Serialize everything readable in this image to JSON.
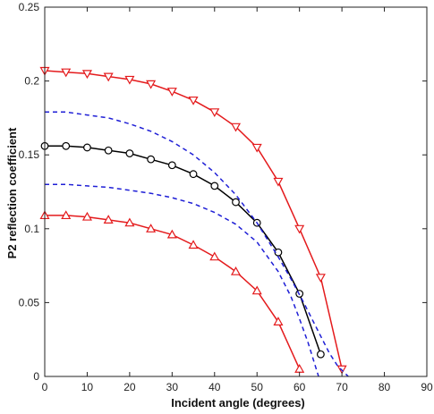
{
  "chart_data": {
    "type": "line",
    "title": "",
    "xlabel": "Incident angle (degrees)",
    "ylabel": "P2 reflection coefficient",
    "xlim": [
      0,
      90
    ],
    "ylim": [
      0,
      0.25
    ],
    "xticks": [
      "0",
      "10",
      "20",
      "30",
      "40",
      "50",
      "60",
      "70",
      "80",
      "90"
    ],
    "yticks": [
      "0",
      "0.05",
      "0.1",
      "0.15",
      "0.2",
      "0.25"
    ],
    "grid": false,
    "legend": "none",
    "series": [
      {
        "style": "solid",
        "color": "#e41a1c",
        "marker": "triangle-down",
        "x": [
          0,
          5,
          10,
          15,
          20,
          25,
          30,
          35,
          40,
          45,
          50,
          55,
          60,
          65,
          70
        ],
        "y": [
          0.207,
          0.206,
          0.205,
          0.203,
          0.201,
          0.198,
          0.193,
          0.187,
          0.179,
          0.169,
          0.155,
          0.132,
          0.1,
          0.067,
          0.005
        ]
      },
      {
        "style": "solid",
        "color": "#000000",
        "marker": "circle",
        "x": [
          0,
          5,
          10,
          15,
          20,
          25,
          30,
          35,
          40,
          45,
          50,
          55,
          60,
          65
        ],
        "y": [
          0.156,
          0.156,
          0.155,
          0.153,
          0.151,
          0.147,
          0.143,
          0.137,
          0.129,
          0.118,
          0.104,
          0.084,
          0.056,
          0.015
        ]
      },
      {
        "style": "solid",
        "color": "#e41a1c",
        "marker": "triangle-up",
        "x": [
          0,
          5,
          10,
          15,
          20,
          25,
          30,
          35,
          40,
          45,
          50,
          55,
          60
        ],
        "y": [
          0.109,
          0.109,
          0.108,
          0.106,
          0.104,
          0.1,
          0.096,
          0.089,
          0.081,
          0.071,
          0.058,
          0.037,
          0.005
        ]
      },
      {
        "style": "dashed",
        "color": "#1f1fd6",
        "marker": "none",
        "x": [
          0,
          5,
          10,
          15,
          20,
          25,
          30,
          35,
          40,
          45,
          50,
          55,
          58,
          61,
          64,
          67,
          69,
          71.5
        ],
        "y": [
          0.179,
          0.179,
          0.177,
          0.175,
          0.171,
          0.166,
          0.159,
          0.15,
          0.138,
          0.123,
          0.104,
          0.081,
          0.066,
          0.05,
          0.033,
          0.016,
          0.007,
          0.0
        ]
      },
      {
        "style": "dashed",
        "color": "#1f1fd6",
        "marker": "none",
        "x": [
          0,
          5,
          10,
          15,
          20,
          25,
          30,
          35,
          40,
          45,
          50,
          55,
          58,
          60,
          62,
          64.5
        ],
        "y": [
          0.13,
          0.13,
          0.129,
          0.128,
          0.126,
          0.124,
          0.121,
          0.117,
          0.111,
          0.103,
          0.091,
          0.071,
          0.054,
          0.039,
          0.023,
          0.0
        ]
      }
    ]
  }
}
